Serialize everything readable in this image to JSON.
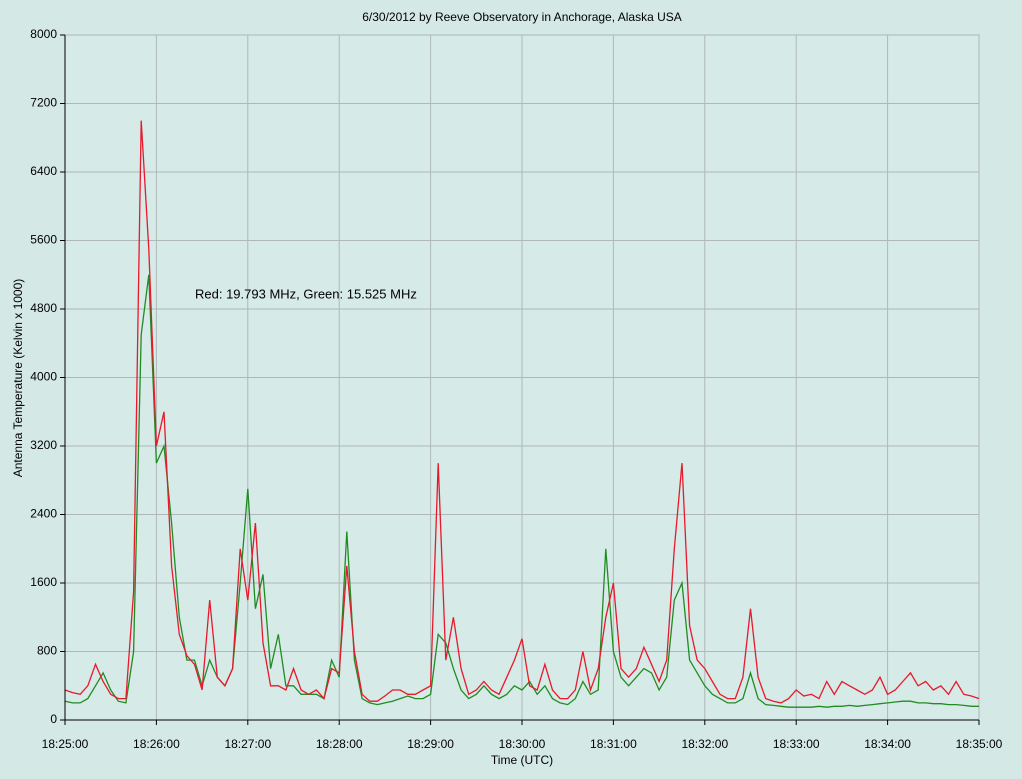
{
  "chart_data": {
    "type": "line",
    "title": "6/30/2012  by  Reeve Observatory  in  Anchorage, Alaska  USA",
    "x_label": "Time (UTC)",
    "y_label": "Antenna Temperature (Kelvin x 1000)",
    "annotation": "Red: 19.793 MHz, Green: 15.525 MHz",
    "grid": true,
    "xlim": [
      "18:25:00",
      "18:35:00"
    ],
    "xticks": [
      "18:25:00",
      "18:26:00",
      "18:27:00",
      "18:28:00",
      "18:29:00",
      "18:30:00",
      "18:31:00",
      "18:32:00",
      "18:33:00",
      "18:34:00",
      "18:35:00"
    ],
    "ylim": [
      0,
      8000
    ],
    "yticks": [
      0,
      800,
      1600,
      2400,
      3200,
      4000,
      4800,
      5600,
      6400,
      7200,
      8000
    ],
    "x": [
      "18:25:00",
      "18:25:05",
      "18:25:10",
      "18:25:15",
      "18:25:20",
      "18:25:25",
      "18:25:30",
      "18:25:35",
      "18:25:40",
      "18:25:45",
      "18:25:50",
      "18:25:55",
      "18:26:00",
      "18:26:05",
      "18:26:10",
      "18:26:15",
      "18:26:20",
      "18:26:25",
      "18:26:30",
      "18:26:35",
      "18:26:40",
      "18:26:45",
      "18:26:50",
      "18:26:55",
      "18:27:00",
      "18:27:05",
      "18:27:10",
      "18:27:15",
      "18:27:20",
      "18:27:25",
      "18:27:30",
      "18:27:35",
      "18:27:40",
      "18:27:45",
      "18:27:50",
      "18:27:55",
      "18:28:00",
      "18:28:05",
      "18:28:10",
      "18:28:15",
      "18:28:20",
      "18:28:25",
      "18:28:30",
      "18:28:35",
      "18:28:40",
      "18:28:45",
      "18:28:50",
      "18:28:55",
      "18:29:00",
      "18:29:05",
      "18:29:10",
      "18:29:15",
      "18:29:20",
      "18:29:25",
      "18:29:30",
      "18:29:35",
      "18:29:40",
      "18:29:45",
      "18:29:50",
      "18:29:55",
      "18:30:00",
      "18:30:05",
      "18:30:10",
      "18:30:15",
      "18:30:20",
      "18:30:25",
      "18:30:30",
      "18:30:35",
      "18:30:40",
      "18:30:45",
      "18:30:50",
      "18:30:55",
      "18:31:00",
      "18:31:05",
      "18:31:10",
      "18:31:15",
      "18:31:20",
      "18:31:25",
      "18:31:30",
      "18:31:35",
      "18:31:40",
      "18:31:45",
      "18:31:50",
      "18:31:55",
      "18:32:00",
      "18:32:05",
      "18:32:10",
      "18:32:15",
      "18:32:20",
      "18:32:25",
      "18:32:30",
      "18:32:35",
      "18:32:40",
      "18:32:45",
      "18:32:50",
      "18:32:55",
      "18:33:00",
      "18:33:05",
      "18:33:10",
      "18:33:15",
      "18:33:20",
      "18:33:25",
      "18:33:30",
      "18:33:35",
      "18:33:40",
      "18:33:45",
      "18:33:50",
      "18:33:55",
      "18:34:00",
      "18:34:05",
      "18:34:10",
      "18:34:15",
      "18:34:20",
      "18:34:25",
      "18:34:30",
      "18:34:35",
      "18:34:40",
      "18:34:45",
      "18:34:50",
      "18:34:55",
      "18:35:00"
    ],
    "series": [
      {
        "name": "Red: 19.793 MHz",
        "color": "#e8192c",
        "values": [
          350,
          320,
          300,
          400,
          650,
          450,
          300,
          250,
          250,
          1500,
          7000,
          5500,
          3200,
          3600,
          1800,
          1000,
          750,
          650,
          350,
          1400,
          500,
          400,
          600,
          2000,
          1400,
          2300,
          900,
          400,
          400,
          350,
          600,
          350,
          300,
          350,
          250,
          600,
          550,
          1800,
          800,
          300,
          220,
          220,
          280,
          350,
          350,
          300,
          300,
          350,
          400,
          3000,
          700,
          1200,
          600,
          300,
          350,
          450,
          350,
          300,
          500,
          700,
          950,
          400,
          350,
          650,
          350,
          250,
          250,
          350,
          800,
          350,
          600,
          1200,
          1600,
          600,
          500,
          600,
          850,
          650,
          450,
          700,
          2000,
          3000,
          1100,
          700,
          600,
          450,
          300,
          250,
          250,
          500,
          1300,
          500,
          250,
          220,
          200,
          250,
          350,
          280,
          300,
          250,
          450,
          300,
          450,
          400,
          350,
          300,
          350,
          500,
          300,
          350,
          450,
          550,
          400,
          450,
          350,
          400,
          300,
          450,
          300,
          280,
          250
        ]
      },
      {
        "name": "Green: 15.525 MHz",
        "color": "#228b22",
        "values": [
          220,
          200,
          200,
          250,
          400,
          550,
          350,
          220,
          200,
          800,
          4500,
          5200,
          3000,
          3200,
          2300,
          1200,
          700,
          700,
          400,
          700,
          500,
          400,
          600,
          1600,
          2700,
          1300,
          1700,
          600,
          1000,
          400,
          400,
          300,
          300,
          300,
          250,
          700,
          500,
          2200,
          700,
          250,
          200,
          180,
          200,
          220,
          250,
          280,
          250,
          250,
          300,
          1000,
          900,
          600,
          350,
          250,
          300,
          400,
          300,
          250,
          300,
          400,
          350,
          450,
          300,
          400,
          250,
          200,
          180,
          250,
          450,
          300,
          350,
          2000,
          800,
          500,
          400,
          500,
          600,
          550,
          350,
          500,
          1400,
          1600,
          700,
          550,
          400,
          300,
          250,
          200,
          200,
          250,
          550,
          250,
          180,
          170,
          160,
          150,
          150,
          150,
          150,
          160,
          150,
          160,
          160,
          170,
          160,
          170,
          180,
          190,
          200,
          210,
          220,
          220,
          200,
          200,
          190,
          190,
          180,
          180,
          170,
          160,
          160
        ]
      }
    ]
  }
}
